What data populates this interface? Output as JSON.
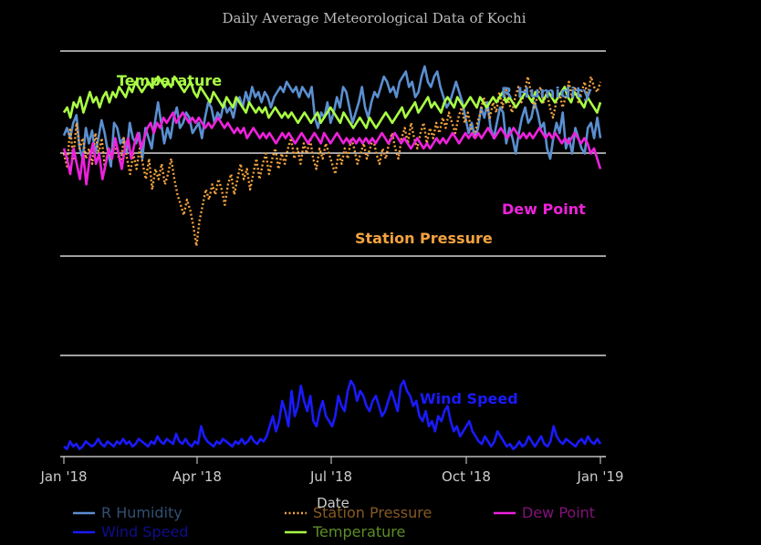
{
  "chart_data": {
    "type": "line",
    "title": "Daily Average Meteorological Data of Kochi",
    "xlabel": "Date",
    "x_ticks": [
      "Jan '18",
      "Apr '18",
      "Jul '18",
      "Oct '18",
      "Jan '19"
    ],
    "x_range_days": [
      0,
      365
    ],
    "panels": [
      {
        "name": "upper",
        "gridlines": 4,
        "series": [
          {
            "name": "R Humidity",
            "color": "#5b8fd0",
            "dash": "solid",
            "annotation": "R Humidity",
            "values": [
              67,
              70,
              66,
              72,
              75,
              62,
              58,
              70,
              64,
              69,
              60,
              66,
              73,
              68,
              61,
              55,
              72,
              70,
              64,
              66,
              60,
              72,
              66,
              64,
              68,
              58,
              70,
              66,
              62,
              72,
              80,
              72,
              64,
              70,
              66,
              74,
              78,
              70,
              72,
              76,
              74,
              68,
              70,
              72,
              66,
              74,
              80,
              78,
              72,
              76,
              74,
              80,
              76,
              78,
              74,
              80,
              82,
              78,
              84,
              80,
              86,
              82,
              84,
              80,
              84,
              82,
              78,
              82,
              84,
              86,
              84,
              88,
              86,
              84,
              86,
              82,
              86,
              84,
              82,
              86,
              74,
              70,
              76,
              74,
              80,
              72,
              76,
              82,
              78,
              86,
              84,
              78,
              72,
              76,
              80,
              86,
              78,
              74,
              80,
              84,
              82,
              86,
              90,
              88,
              84,
              86,
              82,
              88,
              90,
              92,
              86,
              88,
              82,
              84,
              90,
              94,
              88,
              86,
              90,
              92,
              86,
              82,
              78,
              80,
              84,
              88,
              84,
              80,
              74,
              68,
              72,
              66,
              70,
              78,
              74,
              80,
              70,
              66,
              72,
              78,
              76,
              64,
              70,
              66,
              60,
              68,
              74,
              78,
              72,
              74,
              80,
              76,
              70,
              72,
              62,
              58,
              66,
              72,
              68,
              76,
              62,
              66,
              60,
              70,
              66,
              62,
              60,
              70,
              72,
              66,
              74,
              66
            ]
          },
          {
            "name": "Station Pressure",
            "color": "#f4a340",
            "dash": "dotted",
            "annotation": "Station Pressure",
            "values": [
              60,
              55,
              70,
              58,
              72,
              62,
              66,
              58,
              62,
              56,
              68,
              60,
              66,
              54,
              62,
              58,
              64,
              60,
              56,
              66,
              58,
              52,
              60,
              54,
              62,
              56,
              50,
              58,
              46,
              54,
              50,
              56,
              48,
              52,
              58,
              50,
              44,
              40,
              36,
              42,
              38,
              32,
              24,
              34,
              40,
              46,
              42,
              48,
              44,
              50,
              46,
              40,
              48,
              52,
              44,
              50,
              56,
              50,
              54,
              46,
              52,
              58,
              50,
              56,
              60,
              52,
              58,
              62,
              54,
              60,
              56,
              62,
              66,
              58,
              62,
              56,
              64,
              60,
              66,
              58,
              54,
              62,
              58,
              64,
              60,
              56,
              52,
              60,
              56,
              62,
              58,
              66,
              62,
              56,
              60,
              64,
              58,
              62,
              66,
              60,
              56,
              62,
              58,
              64,
              68,
              62,
              58,
              66,
              70,
              64,
              72,
              66,
              62,
              68,
              72,
              64,
              70,
              66,
              72,
              68,
              74,
              70,
              76,
              72,
              68,
              74,
              78,
              72,
              76,
              70,
              66,
              72,
              76,
              82,
              78,
              74,
              80,
              76,
              84,
              78,
              86,
              80,
              76,
              82,
              86,
              80,
              84,
              90,
              84,
              78,
              82,
              86,
              80,
              84,
              78,
              74,
              80,
              84,
              78,
              82,
              88,
              82,
              86,
              80,
              84,
              88,
              82,
              90,
              86,
              84,
              88
            ]
          },
          {
            "name": "Dew Point",
            "color": "#ee22dd",
            "dash": "solid",
            "annotation": "Dew Point",
            "values": [
              62,
              58,
              52,
              62,
              56,
              50,
              60,
              48,
              58,
              64,
              56,
              60,
              50,
              56,
              62,
              58,
              66,
              60,
              54,
              62,
              66,
              58,
              64,
              68,
              62,
              66,
              70,
              72,
              68,
              72,
              70,
              74,
              72,
              74,
              76,
              72,
              74,
              76,
              74,
              72,
              74,
              72,
              74,
              72,
              70,
              72,
              70,
              72,
              74,
              72,
              70,
              72,
              70,
              68,
              70,
              68,
              70,
              66,
              68,
              70,
              68,
              66,
              68,
              66,
              68,
              66,
              64,
              66,
              68,
              66,
              68,
              66,
              64,
              66,
              68,
              66,
              64,
              66,
              68,
              66,
              64,
              68,
              66,
              64,
              66,
              68,
              66,
              64,
              66,
              64,
              66,
              64,
              66,
              64,
              66,
              64,
              66,
              64,
              66,
              68,
              66,
              64,
              66,
              68,
              66,
              64,
              66,
              64,
              62,
              64,
              66,
              64,
              62,
              64,
              62,
              64,
              66,
              64,
              66,
              64,
              66,
              68,
              66,
              64,
              66,
              68,
              66,
              68,
              66,
              68,
              66,
              68,
              70,
              68,
              66,
              68,
              70,
              68,
              66,
              68,
              70,
              68,
              66,
              68,
              66,
              68,
              66,
              68,
              70,
              68,
              66,
              68,
              66,
              68,
              66,
              64,
              66,
              64,
              66,
              68,
              66,
              64,
              66,
              64,
              60,
              62,
              58,
              54
            ]
          },
          {
            "name": "Temperature",
            "color": "#aaff44",
            "dash": "solid",
            "annotation": "Temperature",
            "values": [
              76,
              78,
              74,
              80,
              78,
              82,
              76,
              80,
              84,
              80,
              82,
              78,
              82,
              84,
              80,
              84,
              82,
              86,
              84,
              82,
              86,
              84,
              88,
              86,
              84,
              86,
              88,
              86,
              88,
              90,
              88,
              86,
              88,
              86,
              90,
              88,
              86,
              84,
              86,
              88,
              84,
              82,
              86,
              84,
              82,
              80,
              84,
              82,
              80,
              78,
              82,
              80,
              78,
              82,
              80,
              78,
              76,
              80,
              78,
              76,
              78,
              76,
              78,
              74,
              76,
              78,
              76,
              74,
              76,
              74,
              76,
              74,
              72,
              74,
              76,
              74,
              72,
              74,
              76,
              72,
              74,
              76,
              78,
              76,
              74,
              72,
              76,
              74,
              72,
              70,
              72,
              74,
              72,
              70,
              74,
              72,
              70,
              72,
              74,
              76,
              74,
              72,
              74,
              76,
              78,
              74,
              76,
              78,
              80,
              76,
              78,
              80,
              82,
              78,
              80,
              78,
              76,
              80,
              82,
              80,
              78,
              82,
              80,
              78,
              80,
              82,
              80,
              78,
              82,
              80,
              78,
              80,
              82,
              80,
              82,
              84,
              80,
              82,
              80,
              78,
              80,
              82,
              84,
              82,
              80,
              84,
              82,
              80,
              82,
              84,
              82,
              80,
              82,
              84,
              86,
              82,
              80,
              84,
              82,
              80,
              78,
              82,
              80,
              78,
              76,
              80
            ]
          }
        ]
      },
      {
        "name": "lower",
        "gridlines": 2,
        "series": [
          {
            "name": "Wind Speed",
            "color": "#1a1aff",
            "dash": "solid",
            "annotation": "Wind Speed",
            "values": [
              4,
              3,
              6,
              4,
              5,
              3,
              4,
              6,
              5,
              4,
              5,
              7,
              5,
              4,
              6,
              5,
              4,
              6,
              5,
              7,
              5,
              6,
              4,
              5,
              7,
              6,
              5,
              4,
              6,
              5,
              8,
              6,
              5,
              7,
              6,
              5,
              9,
              6,
              5,
              7,
              5,
              4,
              6,
              5,
              12,
              8,
              6,
              5,
              4,
              6,
              5,
              7,
              6,
              5,
              4,
              6,
              5,
              7,
              5,
              6,
              8,
              6,
              5,
              7,
              6,
              8,
              12,
              16,
              10,
              14,
              22,
              18,
              12,
              26,
              16,
              20,
              28,
              22,
              18,
              24,
              14,
              12,
              18,
              22,
              16,
              14,
              12,
              16,
              24,
              20,
              18,
              26,
              30,
              28,
              22,
              26,
              24,
              20,
              18,
              22,
              24,
              20,
              16,
              18,
              22,
              26,
              22,
              18,
              28,
              30,
              26,
              24,
              20,
              22,
              16,
              14,
              18,
              12,
              14,
              10,
              16,
              14,
              18,
              20,
              14,
              10,
              12,
              8,
              10,
              12,
              14,
              10,
              8,
              6,
              5,
              8,
              6,
              4,
              6,
              10,
              8,
              6,
              4,
              5,
              3,
              4,
              6,
              4,
              5,
              8,
              6,
              4,
              6,
              8,
              5,
              4,
              6,
              12,
              8,
              6,
              5,
              7,
              6,
              5,
              4,
              6,
              7,
              5,
              8,
              6,
              5,
              7,
              5
            ]
          }
        ]
      }
    ],
    "legend": {
      "placement": "bottom",
      "entries": [
        "R Humidity",
        "Station Pressure",
        "Dew Point",
        "Wind Speed",
        "Temperature"
      ]
    }
  }
}
